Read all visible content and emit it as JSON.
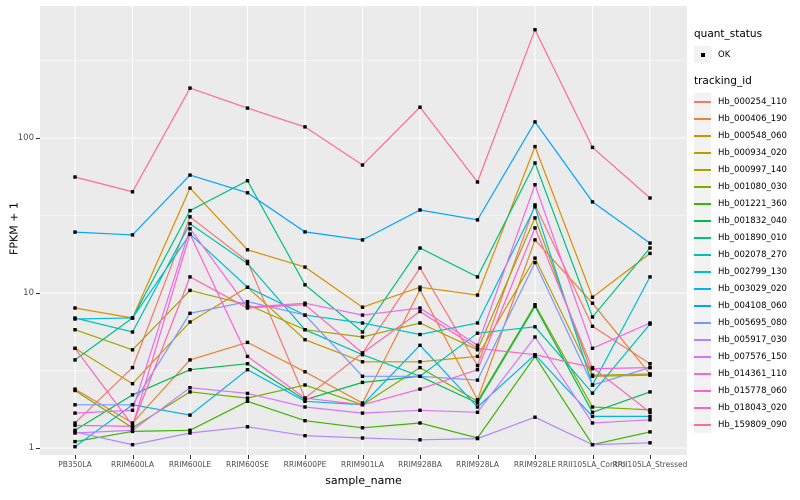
{
  "axes": {
    "x_title": "sample_name",
    "y_title": "FPKM + 1",
    "y_ticks": [
      {
        "label": "1",
        "value": 1
      },
      {
        "label": "10",
        "value": 10
      },
      {
        "label": "100",
        "value": 100
      }
    ],
    "y_minor_ticks": [
      3.1623,
      31.623,
      316.23
    ]
  },
  "legend": {
    "quant_status": {
      "title": "quant_status",
      "items": [
        {
          "label": "OK",
          "symbol": "black-point"
        }
      ]
    },
    "tracking_id": {
      "title": "tracking_id"
    }
  },
  "style": {
    "panel_background": "#EBEBEB",
    "gridline_color": "#FFFFFF",
    "tick_text_color": "#4D4D4D",
    "marker_color": "#000000"
  },
  "chart_data": {
    "type": "line",
    "xlabel": "sample_name",
    "ylabel": "FPKM + 1",
    "yscale": "log10",
    "ylim": [
      0.9,
      713
    ],
    "grid": true,
    "legend_position": "right",
    "marker": "small-black-square",
    "categories": [
      "PB350LA",
      "RRIM600LA",
      "RRIM600LE",
      "RRIM600SE",
      "RRIM600PE",
      "RRIM901LA",
      "RRIM928BA",
      "RRIM928LA",
      "RRIM928LE",
      "RRII105LA_Control",
      "RRII105LA_Stressed"
    ],
    "series": [
      {
        "name": "Hb_000254_110",
        "color": "#F8766D",
        "values": [
          1.45,
          3.3,
          31,
          16,
          2.1,
          4.1,
          14.5,
          3.4,
          37,
          6.1,
          3.5
        ]
      },
      {
        "name": "Hb_000406_190",
        "color": "#EA8331",
        "values": [
          2.4,
          1.45,
          3.7,
          4.8,
          3.1,
          1.95,
          10.5,
          2.05,
          22,
          8.6,
          3.0
        ]
      },
      {
        "name": "Hb_000548_060",
        "color": "#D89000",
        "values": [
          8.0,
          6.9,
          47.5,
          19,
          14.7,
          8.1,
          10.9,
          9.7,
          88,
          9.4,
          18
        ]
      },
      {
        "name": "Hb_000934_020",
        "color": "#C09B00",
        "values": [
          4.4,
          2.6,
          6.5,
          10.9,
          5.0,
          3.6,
          3.6,
          3.9,
          16.8,
          2.9,
          2.95
        ]
      },
      {
        "name": "Hb_000997_140",
        "color": "#A3A500",
        "values": [
          5.8,
          4.3,
          10.4,
          8.4,
          5.8,
          5.2,
          6.4,
          4.3,
          30.5,
          2.95,
          3.0
        ]
      },
      {
        "name": "Hb_001080_030",
        "color": "#7CAE00",
        "values": [
          2.35,
          1.35,
          2.3,
          2.1,
          2.55,
          1.9,
          3.3,
          2.0,
          8.4,
          1.84,
          1.76
        ]
      },
      {
        "name": "Hb_001221_360",
        "color": "#39B600",
        "values": [
          1.1,
          1.28,
          1.3,
          2.0,
          1.5,
          1.35,
          1.45,
          1.16,
          3.9,
          1.05,
          1.27
        ]
      },
      {
        "name": "Hb_001832_040",
        "color": "#00BB4E",
        "values": [
          1.3,
          2.2,
          3.2,
          3.5,
          2.05,
          2.65,
          2.9,
          1.95,
          8.2,
          1.7,
          2.3
        ]
      },
      {
        "name": "Hb_001890_010",
        "color": "#00C087",
        "values": [
          3.7,
          6.9,
          34,
          53,
          11.3,
          5.6,
          19.5,
          12.7,
          69,
          7.0,
          19.5
        ]
      },
      {
        "name": "Hb_002078_270",
        "color": "#00C0B2",
        "values": [
          6.9,
          5.6,
          28,
          15.5,
          5.8,
          4.0,
          2.9,
          5.5,
          6.05,
          2.26,
          6.3
        ]
      },
      {
        "name": "Hb_002799_130",
        "color": "#00BDD2",
        "values": [
          6.8,
          6.9,
          24,
          10.9,
          7.2,
          6.4,
          5.4,
          6.4,
          36,
          2.55,
          12.7
        ]
      },
      {
        "name": "Hb_003029_020",
        "color": "#00B4EF",
        "values": [
          1.02,
          1.9,
          1.63,
          3.2,
          2.0,
          1.9,
          4.6,
          1.84,
          4.0,
          1.6,
          1.6
        ]
      },
      {
        "name": "Hb_004108_060",
        "color": "#00A5FF",
        "values": [
          24.7,
          23.7,
          57.6,
          44.3,
          24.8,
          22,
          34.3,
          29.6,
          127,
          38.7,
          21
        ]
      },
      {
        "name": "Hb_005695_080",
        "color": "#7997FF",
        "values": [
          1.9,
          1.9,
          7.4,
          8.8,
          7.2,
          2.9,
          2.9,
          2.74,
          15.7,
          2.55,
          3.3
        ]
      },
      {
        "name": "Hb_005917_030",
        "color": "#AC88FF",
        "values": [
          1.27,
          1.05,
          1.25,
          1.37,
          1.2,
          1.16,
          1.13,
          1.15,
          1.58,
          1.05,
          1.08
        ]
      },
      {
        "name": "Hb_007576_150",
        "color": "#D376FF",
        "values": [
          1.25,
          1.3,
          2.45,
          2.25,
          1.84,
          1.68,
          1.75,
          1.7,
          5.2,
          1.45,
          1.52
        ]
      },
      {
        "name": "Hb_014361_110",
        "color": "#EF67EB",
        "values": [
          1.68,
          1.75,
          26,
          8.1,
          8.6,
          7.2,
          8.0,
          4.6,
          50,
          4.4,
          6.4
        ]
      },
      {
        "name": "Hb_015778_060",
        "color": "#FD61D3",
        "values": [
          1.4,
          1.38,
          24,
          3.9,
          2.1,
          1.9,
          2.4,
          3.2,
          26.3,
          3.25,
          3.3
        ]
      },
      {
        "name": "Hb_018043_020",
        "color": "#FF62B6",
        "values": [
          4.4,
          1.4,
          12.7,
          8.0,
          8.4,
          4.1,
          7.6,
          4.4,
          4.0,
          3.3,
          1.7
        ]
      },
      {
        "name": "Hb_159809_090",
        "color": "#FF6A98",
        "values": [
          56,
          45,
          210,
          156,
          118,
          67,
          158,
          52,
          500,
          87,
          41
        ]
      }
    ]
  }
}
